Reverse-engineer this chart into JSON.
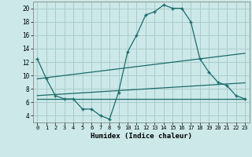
{
  "xlabel": "Humidex (Indice chaleur)",
  "background_color": "#cce8e8",
  "grid_color": "#aacccc",
  "line_color": "#1a6b6b",
  "xlim": [
    -0.5,
    23.5
  ],
  "ylim": [
    3.0,
    21.0
  ],
  "yticks": [
    4,
    6,
    8,
    10,
    12,
    14,
    16,
    18,
    20
  ],
  "xticks": [
    0,
    1,
    2,
    3,
    4,
    5,
    6,
    7,
    8,
    9,
    10,
    11,
    12,
    13,
    14,
    15,
    16,
    17,
    18,
    19,
    20,
    21,
    22,
    23
  ],
  "line1_x": [
    0,
    1,
    2,
    3,
    4,
    5,
    6,
    7,
    8,
    9,
    10,
    11,
    12,
    13,
    14,
    15,
    16,
    17,
    18,
    19,
    20,
    21,
    22,
    23
  ],
  "line1_y": [
    12.5,
    9.5,
    7.0,
    6.5,
    6.5,
    5.0,
    5.0,
    4.0,
    3.5,
    7.5,
    13.5,
    16.0,
    19.0,
    19.5,
    20.5,
    20.0,
    20.0,
    18.0,
    12.5,
    10.5,
    9.0,
    8.5,
    7.0,
    6.5
  ],
  "line2_x": [
    0,
    23
  ],
  "line2_y": [
    9.5,
    13.3
  ],
  "line3_x": [
    0,
    23
  ],
  "line3_y": [
    7.0,
    8.9
  ],
  "line4_x": [
    0,
    23
  ],
  "line4_y": [
    6.5,
    6.5
  ]
}
